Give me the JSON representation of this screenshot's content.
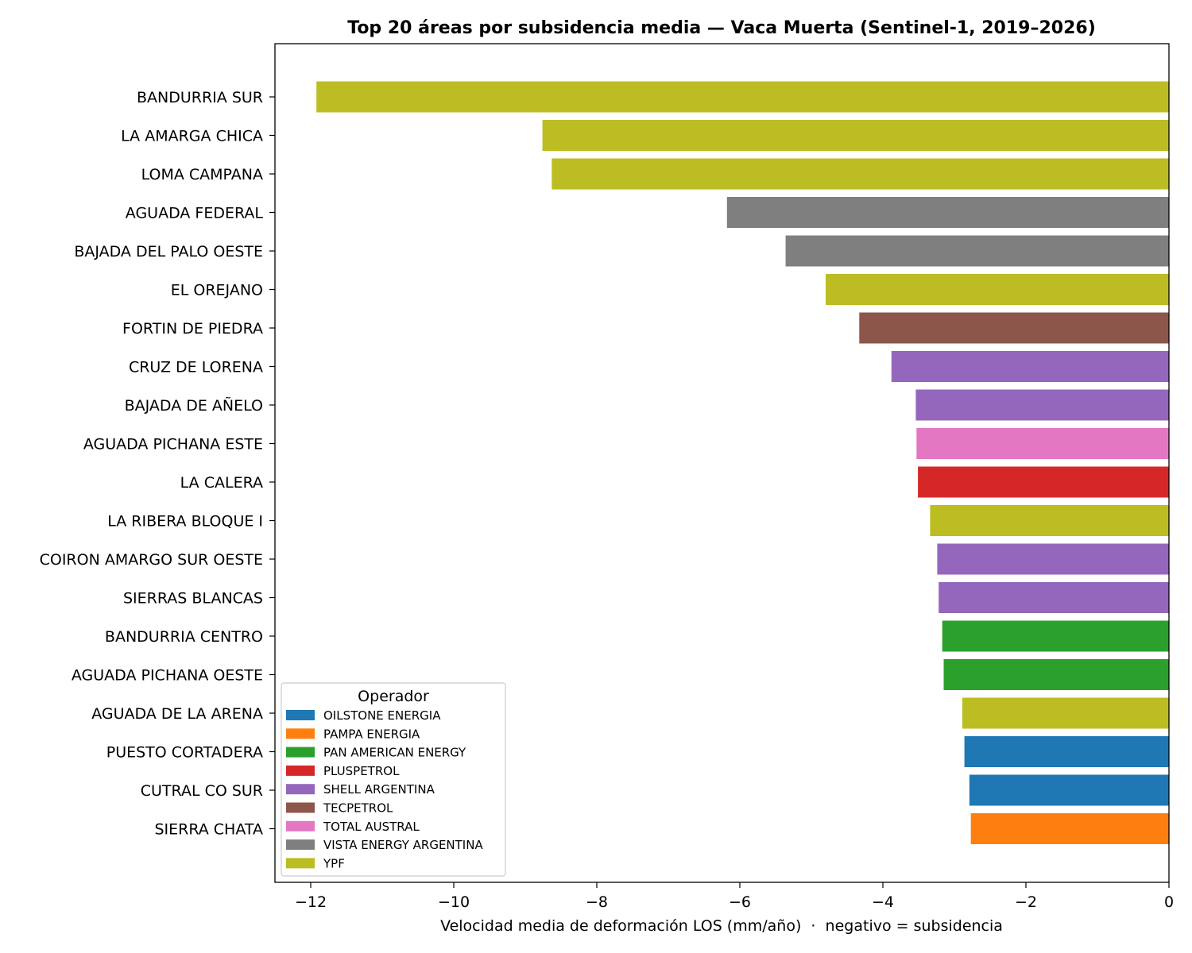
{
  "chart_data": {
    "type": "bar",
    "orientation": "horizontal",
    "title": "Top 20 áreas por subsidencia media — Vaca Muerta (Sentinel-1, 2019–2026)",
    "xlabel": "Velocidad media de deformación LOS (mm/año)  ·  negativo = subsidencia",
    "ylabel": "",
    "xlim": [
      -12.5,
      0
    ],
    "xticks": [
      -12,
      -10,
      -8,
      -6,
      -4,
      -2,
      0
    ],
    "xtick_labels": [
      "−12",
      "−10",
      "−8",
      "−6",
      "−4",
      "−2",
      "0"
    ],
    "grid": false,
    "legend": {
      "title": "Operador",
      "position": "lower-left",
      "entries": [
        {
          "name": "OILSTONE ENERGIA",
          "color": "#1f77b4"
        },
        {
          "name": "PAMPA ENERGIA",
          "color": "#ff7f0e"
        },
        {
          "name": "PAN AMERICAN ENERGY",
          "color": "#2ca02c"
        },
        {
          "name": "PLUSPETROL",
          "color": "#d62728"
        },
        {
          "name": "SHELL ARGENTINA",
          "color": "#9467bd"
        },
        {
          "name": "TECPETROL",
          "color": "#8c564b"
        },
        {
          "name": "TOTAL AUSTRAL",
          "color": "#e377c2"
        },
        {
          "name": "VISTA ENERGY ARGENTINA",
          "color": "#7f7f7f"
        },
        {
          "name": "YPF",
          "color": "#bcbd22"
        }
      ]
    },
    "bars": [
      {
        "category": "BANDURRIA SUR",
        "value": -11.92,
        "operator": "YPF"
      },
      {
        "category": "LA AMARGA CHICA",
        "value": -8.76,
        "operator": "YPF"
      },
      {
        "category": "LOMA CAMPANA",
        "value": -8.63,
        "operator": "YPF"
      },
      {
        "category": "AGUADA FEDERAL",
        "value": -6.18,
        "operator": "VISTA ENERGY ARGENTINA"
      },
      {
        "category": "BAJADA DEL PALO OESTE",
        "value": -5.36,
        "operator": "VISTA ENERGY ARGENTINA"
      },
      {
        "category": "EL OREJANO",
        "value": -4.8,
        "operator": "YPF"
      },
      {
        "category": "FORTIN DE PIEDRA",
        "value": -4.33,
        "operator": "TECPETROL"
      },
      {
        "category": "CRUZ DE LORENA",
        "value": -3.88,
        "operator": "SHELL ARGENTINA"
      },
      {
        "category": "BAJADA DE AÑELO",
        "value": -3.54,
        "operator": "SHELL ARGENTINA"
      },
      {
        "category": "AGUADA PICHANA ESTE",
        "value": -3.53,
        "operator": "TOTAL AUSTRAL"
      },
      {
        "category": "LA CALERA",
        "value": -3.51,
        "operator": "PLUSPETROL"
      },
      {
        "category": "LA RIBERA BLOQUE I",
        "value": -3.34,
        "operator": "YPF"
      },
      {
        "category": "COIRON AMARGO SUR OESTE",
        "value": -3.24,
        "operator": "SHELL ARGENTINA"
      },
      {
        "category": "SIERRAS BLANCAS",
        "value": -3.22,
        "operator": "SHELL ARGENTINA"
      },
      {
        "category": "BANDURRIA CENTRO",
        "value": -3.17,
        "operator": "PAN AMERICAN ENERGY"
      },
      {
        "category": "AGUADA PICHANA OESTE",
        "value": -3.15,
        "operator": "PAN AMERICAN ENERGY"
      },
      {
        "category": "AGUADA DE LA ARENA",
        "value": -2.89,
        "operator": "YPF"
      },
      {
        "category": "PUESTO CORTADERA",
        "value": -2.86,
        "operator": "OILSTONE ENERGIA"
      },
      {
        "category": "CUTRAL CO SUR",
        "value": -2.79,
        "operator": "OILSTONE ENERGIA"
      },
      {
        "category": "SIERRA CHATA",
        "value": -2.77,
        "operator": "PAMPA ENERGIA"
      }
    ]
  }
}
